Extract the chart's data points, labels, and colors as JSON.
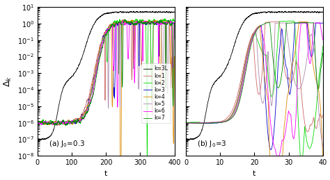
{
  "xlabel": "t",
  "ylabel": "$\\Delta_k$",
  "xlim_a": [
    0,
    400
  ],
  "xlim_b": [
    0,
    40
  ],
  "xticks_a": [
    0,
    100,
    200,
    300,
    400
  ],
  "xticks_b": [
    0,
    10,
    20,
    30,
    40
  ],
  "ylim": [
    1e-08,
    10.0
  ],
  "legend_labels": [
    "k=3L",
    "k=1",
    "k=2",
    "k=3",
    "k=4",
    "k=5",
    "k=6",
    "k=7"
  ],
  "legend_colors": [
    "#000000",
    "#cc6666",
    "#00dd00",
    "#0000cc",
    "#dd8800",
    "#aa88aa",
    "#ff00ff",
    "#008800"
  ],
  "lw": 0.6,
  "background": "#ffffff",
  "label_a": "(a) J$_0$=0.3",
  "label_b": "(b) J$_0$=3"
}
